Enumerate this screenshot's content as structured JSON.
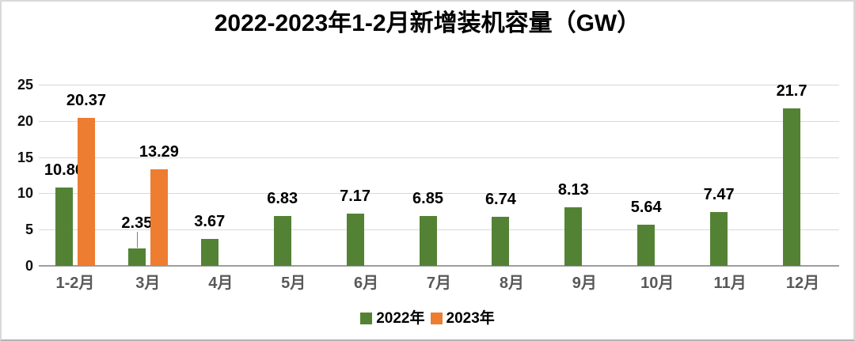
{
  "chart_data": {
    "type": "bar",
    "title": "2022-2023年1-2月新增装机容量（GW）",
    "categories": [
      "1-2月",
      "3月",
      "4月",
      "5月",
      "6月",
      "7月",
      "8月",
      "9月",
      "10月",
      "11月",
      "12月"
    ],
    "series": [
      {
        "name": "2022年",
        "color": "#548235",
        "values": [
          10.86,
          2.35,
          3.67,
          6.83,
          7.17,
          6.85,
          6.74,
          8.13,
          5.64,
          7.47,
          21.7
        ]
      },
      {
        "name": "2023年",
        "color": "#ED7D31",
        "values": [
          20.37,
          13.29,
          null,
          null,
          null,
          null,
          null,
          null,
          null,
          null,
          null
        ]
      }
    ],
    "data_labels": {
      "series_2022": [
        "10.86",
        "2.35",
        "3.67",
        "6.83",
        "7.17",
        "6.85",
        "6.74",
        "8.13",
        "5.64",
        "7.47",
        "21.7"
      ],
      "series_2023": [
        "20.37",
        "13.29"
      ]
    },
    "ylim": [
      0,
      25
    ],
    "yticks": [
      0,
      5,
      10,
      15,
      20,
      25
    ],
    "xlabel": "",
    "ylabel": "",
    "grid": true,
    "legend_position": "bottom",
    "colors": {
      "gridline": "#d9d9d9",
      "axis_line": "#9e9e9e",
      "x_tick_label": "#595959",
      "y_tick_label": "#111111",
      "data_label": "#000000"
    },
    "annotations": [
      {
        "type": "leader-line",
        "series_index": 0,
        "category_index": 1,
        "note": "2.35 label raised above bar with vertical leader line"
      }
    ]
  }
}
